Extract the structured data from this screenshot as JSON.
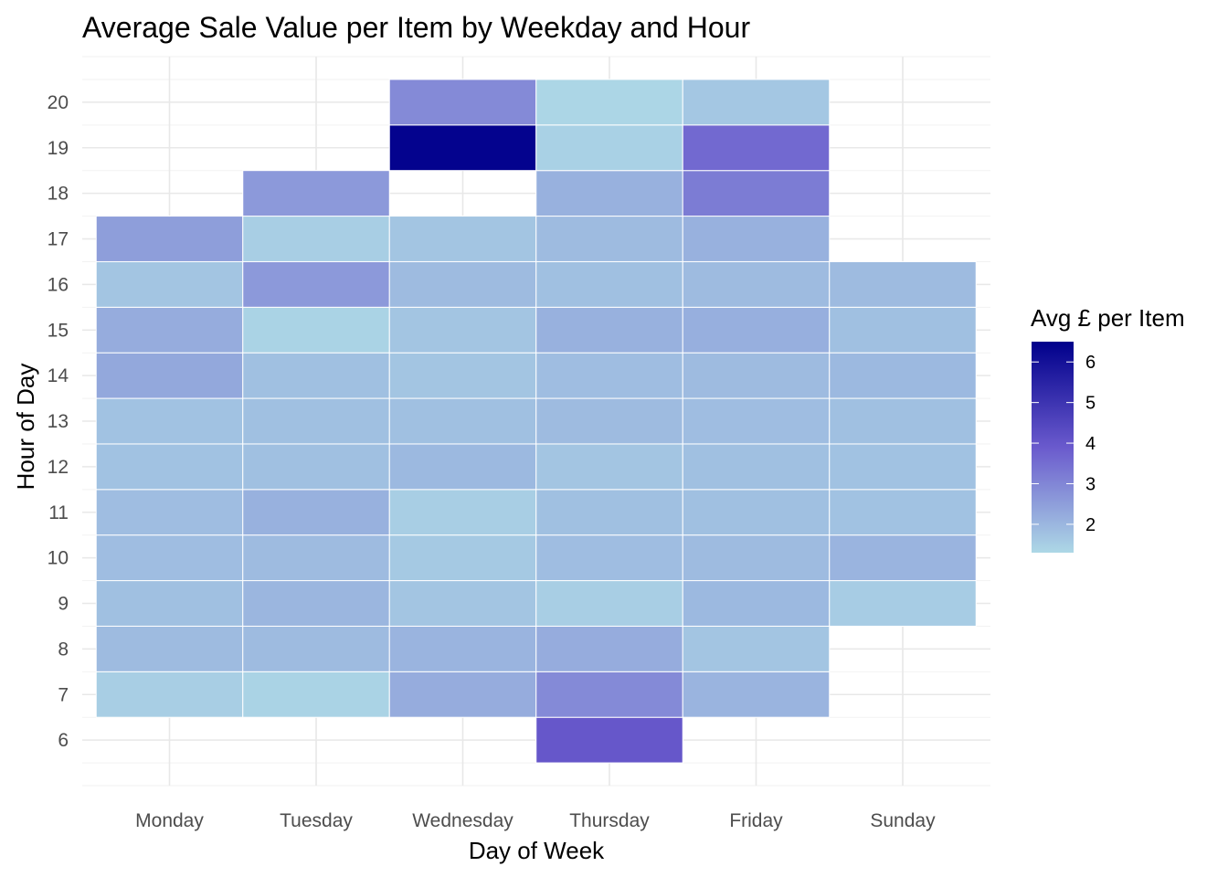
{
  "chart_data": {
    "type": "heatmap",
    "title": "Average Sale Value per Item by Weekday and Hour",
    "xlabel": "Day of Week",
    "ylabel": "Hour of Day",
    "x_categories": [
      "Monday",
      "Tuesday",
      "Wednesday",
      "Thursday",
      "Friday",
      "Sunday"
    ],
    "y_ticks": [
      6,
      7,
      8,
      9,
      10,
      11,
      12,
      13,
      14,
      15,
      16,
      17,
      18,
      19,
      20
    ],
    "ylim": [
      5,
      21
    ],
    "grid": true,
    "legend": {
      "title": "Avg £ per Item",
      "position": "right",
      "min": 1.3,
      "max": 6.5,
      "ticks": [
        2,
        3,
        4,
        5,
        6
      ],
      "color_low": "#ADD8E6",
      "color_mid": "#6A5ACD",
      "color_high": "#00008B"
    },
    "cells": [
      {
        "day": "Monday",
        "hour": 7,
        "value": 1.5
      },
      {
        "day": "Monday",
        "hour": 8,
        "value": 1.9
      },
      {
        "day": "Monday",
        "hour": 9,
        "value": 1.8
      },
      {
        "day": "Monday",
        "hour": 10,
        "value": 1.85
      },
      {
        "day": "Monday",
        "hour": 11,
        "value": 1.85
      },
      {
        "day": "Monday",
        "hour": 12,
        "value": 1.75
      },
      {
        "day": "Monday",
        "hour": 13,
        "value": 1.75
      },
      {
        "day": "Monday",
        "hour": 14,
        "value": 2.3
      },
      {
        "day": "Monday",
        "hour": 15,
        "value": 2.2
      },
      {
        "day": "Monday",
        "hour": 16,
        "value": 1.7
      },
      {
        "day": "Monday",
        "hour": 17,
        "value": 2.5
      },
      {
        "day": "Tuesday",
        "hour": 7,
        "value": 1.4
      },
      {
        "day": "Tuesday",
        "hour": 8,
        "value": 1.9
      },
      {
        "day": "Tuesday",
        "hour": 9,
        "value": 2.0
      },
      {
        "day": "Tuesday",
        "hour": 10,
        "value": 1.9
      },
      {
        "day": "Tuesday",
        "hour": 11,
        "value": 2.1
      },
      {
        "day": "Tuesday",
        "hour": 12,
        "value": 1.8
      },
      {
        "day": "Tuesday",
        "hour": 13,
        "value": 1.8
      },
      {
        "day": "Tuesday",
        "hour": 14,
        "value": 1.8
      },
      {
        "day": "Tuesday",
        "hour": 15,
        "value": 1.4
      },
      {
        "day": "Tuesday",
        "hour": 16,
        "value": 2.6
      },
      {
        "day": "Tuesday",
        "hour": 17,
        "value": 1.5
      },
      {
        "day": "Tuesday",
        "hour": 18,
        "value": 2.6
      },
      {
        "day": "Wednesday",
        "hour": 7,
        "value": 2.2
      },
      {
        "day": "Wednesday",
        "hour": 8,
        "value": 2.05
      },
      {
        "day": "Wednesday",
        "hour": 9,
        "value": 1.7
      },
      {
        "day": "Wednesday",
        "hour": 10,
        "value": 1.6
      },
      {
        "day": "Wednesday",
        "hour": 11,
        "value": 1.5
      },
      {
        "day": "Wednesday",
        "hour": 12,
        "value": 1.95
      },
      {
        "day": "Wednesday",
        "hour": 13,
        "value": 1.8
      },
      {
        "day": "Wednesday",
        "hour": 14,
        "value": 1.7
      },
      {
        "day": "Wednesday",
        "hour": 15,
        "value": 1.7
      },
      {
        "day": "Wednesday",
        "hour": 16,
        "value": 1.9
      },
      {
        "day": "Wednesday",
        "hour": 17,
        "value": 1.7
      },
      {
        "day": "Wednesday",
        "hour": 19,
        "value": 6.4
      },
      {
        "day": "Wednesday",
        "hour": 20,
        "value": 2.9
      },
      {
        "day": "Thursday",
        "hour": 6,
        "value": 4.0
      },
      {
        "day": "Thursday",
        "hour": 7,
        "value": 2.9
      },
      {
        "day": "Thursday",
        "hour": 8,
        "value": 2.2
      },
      {
        "day": "Thursday",
        "hour": 9,
        "value": 1.5
      },
      {
        "day": "Thursday",
        "hour": 10,
        "value": 1.85
      },
      {
        "day": "Thursday",
        "hour": 11,
        "value": 1.8
      },
      {
        "day": "Thursday",
        "hour": 12,
        "value": 1.7
      },
      {
        "day": "Thursday",
        "hour": 13,
        "value": 1.9
      },
      {
        "day": "Thursday",
        "hour": 14,
        "value": 1.85
      },
      {
        "day": "Thursday",
        "hour": 15,
        "value": 2.1
      },
      {
        "day": "Thursday",
        "hour": 16,
        "value": 1.8
      },
      {
        "day": "Thursday",
        "hour": 17,
        "value": 1.9
      },
      {
        "day": "Thursday",
        "hour": 18,
        "value": 2.1
      },
      {
        "day": "Thursday",
        "hour": 19,
        "value": 1.45
      },
      {
        "day": "Thursday",
        "hour": 20,
        "value": 1.35
      },
      {
        "day": "Friday",
        "hour": 7,
        "value": 2.05
      },
      {
        "day": "Friday",
        "hour": 8,
        "value": 1.7
      },
      {
        "day": "Friday",
        "hour": 9,
        "value": 1.95
      },
      {
        "day": "Friday",
        "hour": 10,
        "value": 1.9
      },
      {
        "day": "Friday",
        "hour": 11,
        "value": 1.8
      },
      {
        "day": "Friday",
        "hour": 12,
        "value": 1.8
      },
      {
        "day": "Friday",
        "hour": 13,
        "value": 1.85
      },
      {
        "day": "Friday",
        "hour": 14,
        "value": 1.9
      },
      {
        "day": "Friday",
        "hour": 15,
        "value": 2.15
      },
      {
        "day": "Friday",
        "hour": 16,
        "value": 1.9
      },
      {
        "day": "Friday",
        "hour": 17,
        "value": 2.1
      },
      {
        "day": "Friday",
        "hour": 18,
        "value": 3.2
      },
      {
        "day": "Friday",
        "hour": 19,
        "value": 3.6
      },
      {
        "day": "Friday",
        "hour": 20,
        "value": 1.65
      },
      {
        "day": "Sunday",
        "hour": 9,
        "value": 1.55
      },
      {
        "day": "Sunday",
        "hour": 10,
        "value": 2.05
      },
      {
        "day": "Sunday",
        "hour": 11,
        "value": 1.75
      },
      {
        "day": "Sunday",
        "hour": 12,
        "value": 1.75
      },
      {
        "day": "Sunday",
        "hour": 13,
        "value": 1.8
      },
      {
        "day": "Sunday",
        "hour": 14,
        "value": 1.95
      },
      {
        "day": "Sunday",
        "hour": 15,
        "value": 1.8
      },
      {
        "day": "Sunday",
        "hour": 16,
        "value": 1.9
      }
    ]
  }
}
